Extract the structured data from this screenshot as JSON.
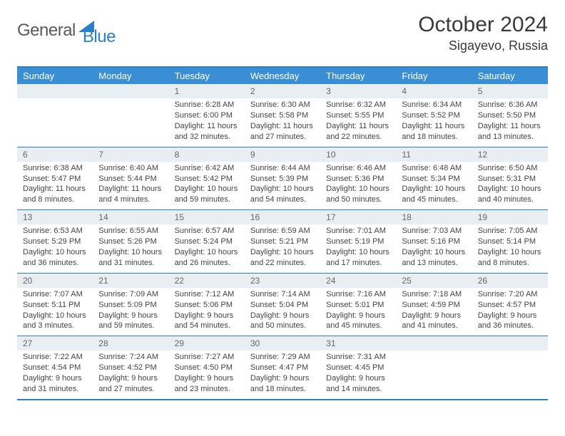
{
  "logo": {
    "general": "General",
    "blue": "Blue"
  },
  "title": "October 2024",
  "subtitle": "Sigayevo, Russia",
  "colors": {
    "header_bg": "#3a8fd4",
    "border": "#2a7fc9",
    "date_bg": "#e9eef2",
    "text": "#444444"
  },
  "day_headers": [
    "Sunday",
    "Monday",
    "Tuesday",
    "Wednesday",
    "Thursday",
    "Friday",
    "Saturday"
  ],
  "weeks": [
    [
      {
        "date": "",
        "sunrise": "",
        "sunset": "",
        "daylight": ""
      },
      {
        "date": "",
        "sunrise": "",
        "sunset": "",
        "daylight": ""
      },
      {
        "date": "1",
        "sunrise": "Sunrise: 6:28 AM",
        "sunset": "Sunset: 6:00 PM",
        "daylight": "Daylight: 11 hours and 32 minutes."
      },
      {
        "date": "2",
        "sunrise": "Sunrise: 6:30 AM",
        "sunset": "Sunset: 5:58 PM",
        "daylight": "Daylight: 11 hours and 27 minutes."
      },
      {
        "date": "3",
        "sunrise": "Sunrise: 6:32 AM",
        "sunset": "Sunset: 5:55 PM",
        "daylight": "Daylight: 11 hours and 22 minutes."
      },
      {
        "date": "4",
        "sunrise": "Sunrise: 6:34 AM",
        "sunset": "Sunset: 5:52 PM",
        "daylight": "Daylight: 11 hours and 18 minutes."
      },
      {
        "date": "5",
        "sunrise": "Sunrise: 6:36 AM",
        "sunset": "Sunset: 5:50 PM",
        "daylight": "Daylight: 11 hours and 13 minutes."
      }
    ],
    [
      {
        "date": "6",
        "sunrise": "Sunrise: 6:38 AM",
        "sunset": "Sunset: 5:47 PM",
        "daylight": "Daylight: 11 hours and 8 minutes."
      },
      {
        "date": "7",
        "sunrise": "Sunrise: 6:40 AM",
        "sunset": "Sunset: 5:44 PM",
        "daylight": "Daylight: 11 hours and 4 minutes."
      },
      {
        "date": "8",
        "sunrise": "Sunrise: 6:42 AM",
        "sunset": "Sunset: 5:42 PM",
        "daylight": "Daylight: 10 hours and 59 minutes."
      },
      {
        "date": "9",
        "sunrise": "Sunrise: 6:44 AM",
        "sunset": "Sunset: 5:39 PM",
        "daylight": "Daylight: 10 hours and 54 minutes."
      },
      {
        "date": "10",
        "sunrise": "Sunrise: 6:46 AM",
        "sunset": "Sunset: 5:36 PM",
        "daylight": "Daylight: 10 hours and 50 minutes."
      },
      {
        "date": "11",
        "sunrise": "Sunrise: 6:48 AM",
        "sunset": "Sunset: 5:34 PM",
        "daylight": "Daylight: 10 hours and 45 minutes."
      },
      {
        "date": "12",
        "sunrise": "Sunrise: 6:50 AM",
        "sunset": "Sunset: 5:31 PM",
        "daylight": "Daylight: 10 hours and 40 minutes."
      }
    ],
    [
      {
        "date": "13",
        "sunrise": "Sunrise: 6:53 AM",
        "sunset": "Sunset: 5:29 PM",
        "daylight": "Daylight: 10 hours and 36 minutes."
      },
      {
        "date": "14",
        "sunrise": "Sunrise: 6:55 AM",
        "sunset": "Sunset: 5:26 PM",
        "daylight": "Daylight: 10 hours and 31 minutes."
      },
      {
        "date": "15",
        "sunrise": "Sunrise: 6:57 AM",
        "sunset": "Sunset: 5:24 PM",
        "daylight": "Daylight: 10 hours and 26 minutes."
      },
      {
        "date": "16",
        "sunrise": "Sunrise: 6:59 AM",
        "sunset": "Sunset: 5:21 PM",
        "daylight": "Daylight: 10 hours and 22 minutes."
      },
      {
        "date": "17",
        "sunrise": "Sunrise: 7:01 AM",
        "sunset": "Sunset: 5:19 PM",
        "daylight": "Daylight: 10 hours and 17 minutes."
      },
      {
        "date": "18",
        "sunrise": "Sunrise: 7:03 AM",
        "sunset": "Sunset: 5:16 PM",
        "daylight": "Daylight: 10 hours and 13 minutes."
      },
      {
        "date": "19",
        "sunrise": "Sunrise: 7:05 AM",
        "sunset": "Sunset: 5:14 PM",
        "daylight": "Daylight: 10 hours and 8 minutes."
      }
    ],
    [
      {
        "date": "20",
        "sunrise": "Sunrise: 7:07 AM",
        "sunset": "Sunset: 5:11 PM",
        "daylight": "Daylight: 10 hours and 3 minutes."
      },
      {
        "date": "21",
        "sunrise": "Sunrise: 7:09 AM",
        "sunset": "Sunset: 5:09 PM",
        "daylight": "Daylight: 9 hours and 59 minutes."
      },
      {
        "date": "22",
        "sunrise": "Sunrise: 7:12 AM",
        "sunset": "Sunset: 5:06 PM",
        "daylight": "Daylight: 9 hours and 54 minutes."
      },
      {
        "date": "23",
        "sunrise": "Sunrise: 7:14 AM",
        "sunset": "Sunset: 5:04 PM",
        "daylight": "Daylight: 9 hours and 50 minutes."
      },
      {
        "date": "24",
        "sunrise": "Sunrise: 7:16 AM",
        "sunset": "Sunset: 5:01 PM",
        "daylight": "Daylight: 9 hours and 45 minutes."
      },
      {
        "date": "25",
        "sunrise": "Sunrise: 7:18 AM",
        "sunset": "Sunset: 4:59 PM",
        "daylight": "Daylight: 9 hours and 41 minutes."
      },
      {
        "date": "26",
        "sunrise": "Sunrise: 7:20 AM",
        "sunset": "Sunset: 4:57 PM",
        "daylight": "Daylight: 9 hours and 36 minutes."
      }
    ],
    [
      {
        "date": "27",
        "sunrise": "Sunrise: 7:22 AM",
        "sunset": "Sunset: 4:54 PM",
        "daylight": "Daylight: 9 hours and 31 minutes."
      },
      {
        "date": "28",
        "sunrise": "Sunrise: 7:24 AM",
        "sunset": "Sunset: 4:52 PM",
        "daylight": "Daylight: 9 hours and 27 minutes."
      },
      {
        "date": "29",
        "sunrise": "Sunrise: 7:27 AM",
        "sunset": "Sunset: 4:50 PM",
        "daylight": "Daylight: 9 hours and 23 minutes."
      },
      {
        "date": "30",
        "sunrise": "Sunrise: 7:29 AM",
        "sunset": "Sunset: 4:47 PM",
        "daylight": "Daylight: 9 hours and 18 minutes."
      },
      {
        "date": "31",
        "sunrise": "Sunrise: 7:31 AM",
        "sunset": "Sunset: 4:45 PM",
        "daylight": "Daylight: 9 hours and 14 minutes."
      },
      {
        "date": "",
        "sunrise": "",
        "sunset": "",
        "daylight": ""
      },
      {
        "date": "",
        "sunrise": "",
        "sunset": "",
        "daylight": ""
      }
    ]
  ]
}
